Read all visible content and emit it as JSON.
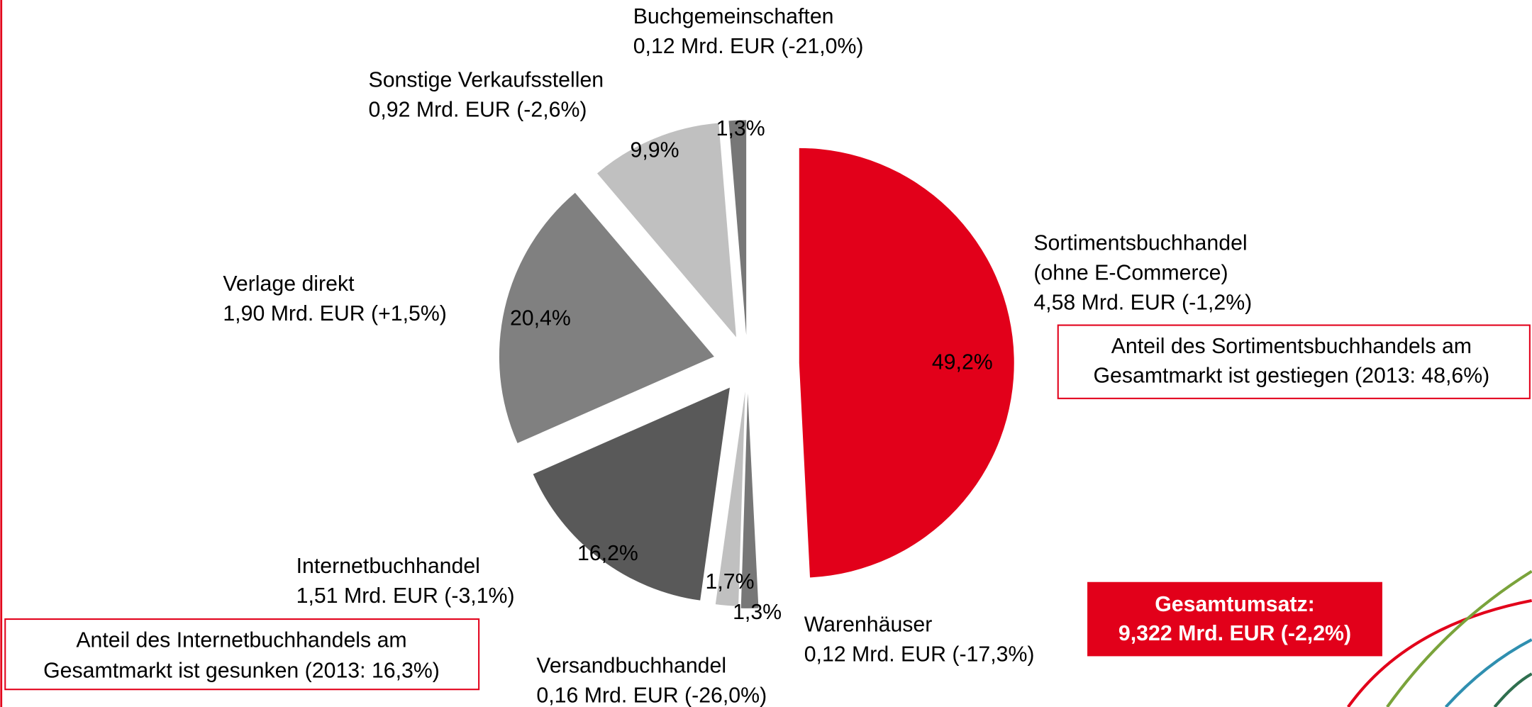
{
  "chart_data": {
    "type": "pie",
    "categories": [
      "Sortimentsbuchhandel",
      "Warenhäuser",
      "Versandbuchhandel",
      "Internetbuchhandel",
      "Verlage direkt",
      "Sonstige Verkaufsstellen",
      "Buchgemeinschaften"
    ],
    "category_details": [
      [
        "(ohne E-Commerce)",
        "4,58 Mrd. EUR (-1,2%)"
      ],
      [
        "0,12 Mrd. EUR (-17,3%)"
      ],
      [
        "0,16 Mrd. EUR (-26,0%)"
      ],
      [
        "1,51 Mrd. EUR (-3,1%)"
      ],
      [
        "1,90 Mrd. EUR (+1,5%)"
      ],
      [
        "0,92 Mrd. EUR (-2,6%)"
      ],
      [
        "0,12 Mrd. EUR (-21,0%)"
      ]
    ],
    "values": [
      49.2,
      1.3,
      1.7,
      16.2,
      20.4,
      9.9,
      1.3
    ],
    "value_labels": [
      "49,2%",
      "1,3%",
      "1,7%",
      "16,2%",
      "20,4%",
      "9,9%",
      "1,3%"
    ],
    "colors": [
      "#e2001a",
      "#777777",
      "#c0c0c0",
      "#595959",
      "#808080",
      "#c0c0c0",
      "#777777"
    ],
    "annotations": [
      [
        "Anteil des Sortimentsbuchhandels am",
        "Gesamtmarkt ist gestiegen (2013: 48,6%)"
      ],
      [
        "Anteil des Internetbuchhandels am",
        "Gesamtmarkt ist gesunken (2013: 16,3%)"
      ],
      [
        "Gesamtumsatz:",
        "9,322 Mrd. EUR (-2,2%)"
      ]
    ]
  }
}
